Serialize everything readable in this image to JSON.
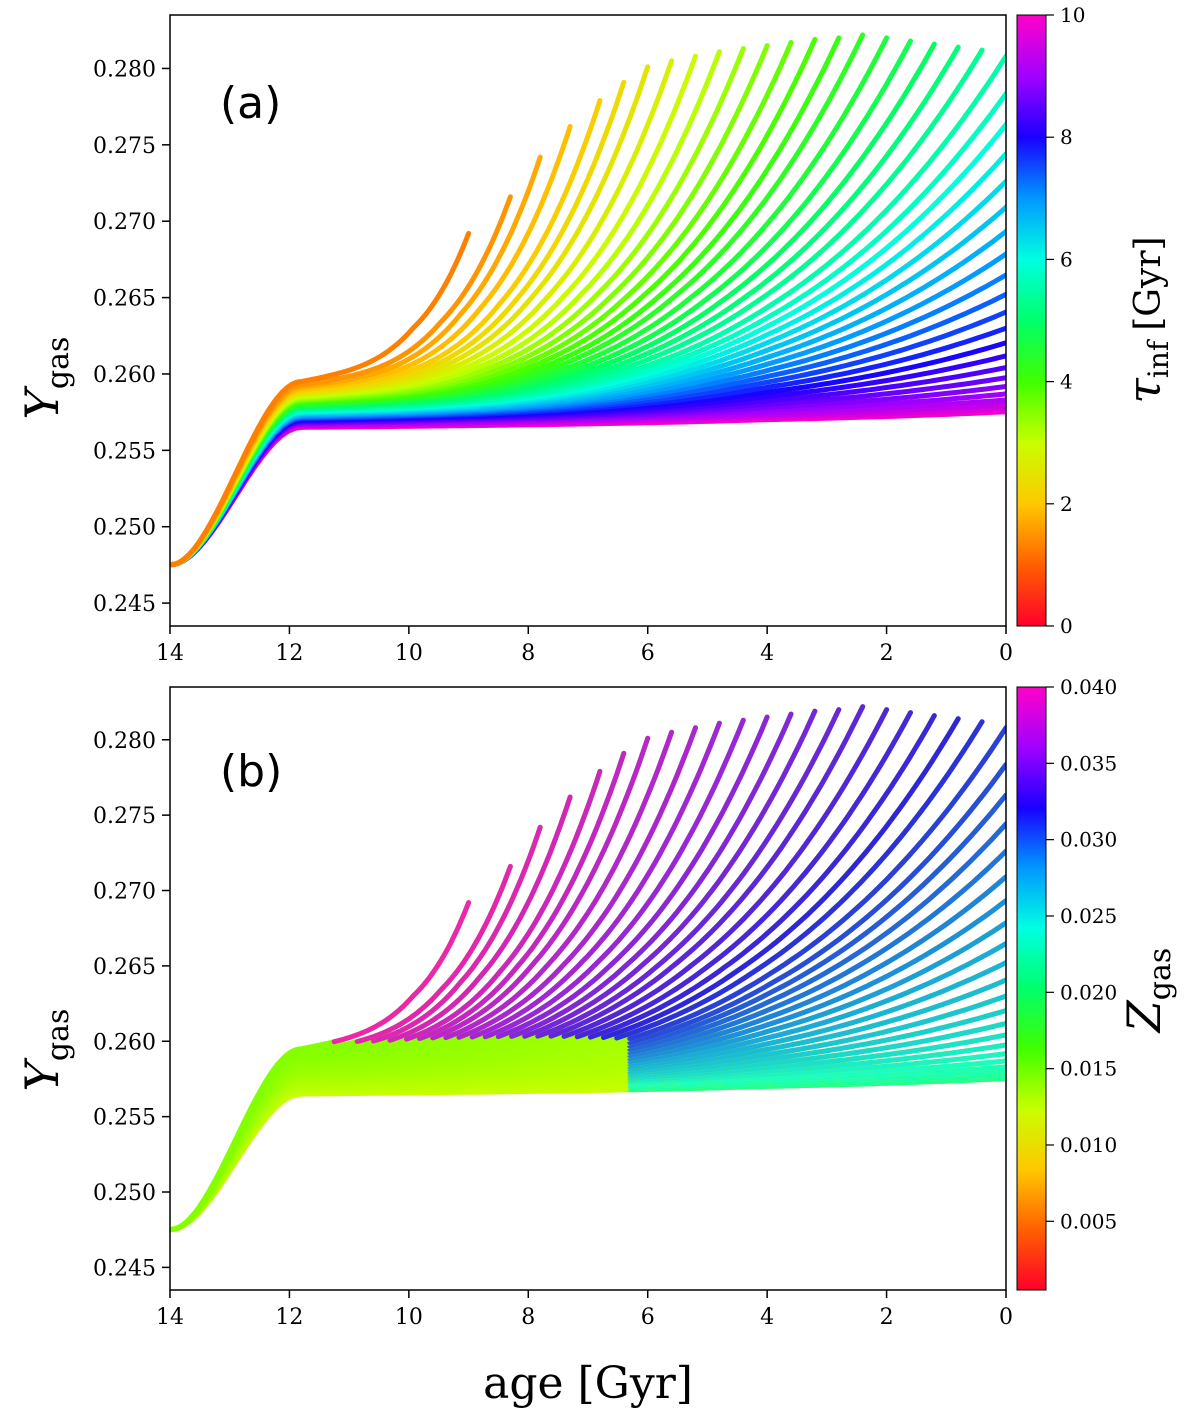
{
  "chart_data": [
    {
      "type": "line",
      "panel_label": "(a)",
      "xlabel": "age [Gyr]",
      "ylabel": "Y",
      "ylabel_sub": "gas",
      "xlim": [
        14,
        0
      ],
      "ylim": [
        0.2435,
        0.2835
      ],
      "xticks": [
        "14",
        "12",
        "10",
        "8",
        "6",
        "4",
        "2",
        "0"
      ],
      "yticks": [
        "0.245",
        "0.250",
        "0.255",
        "0.260",
        "0.265",
        "0.270",
        "0.275",
        "0.280"
      ],
      "color_by": "tau_inf",
      "colorbar": {
        "label": "τ",
        "label_sub": "inf",
        "label_unit": "[Gyr]",
        "range": [
          0,
          10
        ],
        "ticks": [
          "0",
          "2",
          "4",
          "6",
          "8",
          "10"
        ],
        "colormap": "gist_rainbow"
      },
      "series_summary": {
        "count_tracks": 44,
        "start_point": [
          14,
          0.2475
        ],
        "knee_age": 12,
        "upper_envelope_endpoints": [
          [
            9.0,
            0.2692
          ],
          [
            8.3,
            0.2716
          ],
          [
            7.8,
            0.2742
          ],
          [
            7.3,
            0.2762
          ],
          [
            6.8,
            0.2779
          ],
          [
            6.4,
            0.2791
          ],
          [
            6.0,
            0.2801
          ],
          [
            5.6,
            0.2805
          ],
          [
            5.2,
            0.2808
          ],
          [
            4.8,
            0.2811
          ],
          [
            4.4,
            0.2813
          ],
          [
            4.0,
            0.2815
          ],
          [
            3.6,
            0.2817
          ],
          [
            3.2,
            0.2819
          ],
          [
            2.8,
            0.282
          ],
          [
            2.4,
            0.2822
          ],
          [
            2.0,
            0.282
          ],
          [
            1.6,
            0.2818
          ],
          [
            1.2,
            0.2816
          ],
          [
            0.8,
            0.2814
          ],
          [
            0.4,
            0.2812
          ],
          [
            0.0,
            0.2808
          ]
        ],
        "lowest_track_end": [
          0,
          0.2575
        ]
      }
    },
    {
      "type": "line",
      "panel_label": "(b)",
      "xlabel": "age [Gyr]",
      "ylabel": "Y",
      "ylabel_sub": "gas",
      "xlim": [
        14,
        0
      ],
      "ylim": [
        0.2435,
        0.2835
      ],
      "xticks": [
        "14",
        "12",
        "10",
        "8",
        "6",
        "4",
        "2",
        "0"
      ],
      "yticks": [
        "0.245",
        "0.250",
        "0.255",
        "0.260",
        "0.265",
        "0.270",
        "0.275",
        "0.280"
      ],
      "color_by": "Z_gas",
      "colorbar": {
        "label": "Z",
        "label_sub": "gas",
        "range": [
          0.0005,
          0.04
        ],
        "ticks": [
          "0.005",
          "0.010",
          "0.015",
          "0.020",
          "0.025",
          "0.030",
          "0.035",
          "0.040"
        ],
        "colormap": "gist_rainbow"
      },
      "series_summary": {
        "count_tracks": 44,
        "same_tracks_as_panel": "(a)"
      }
    }
  ]
}
